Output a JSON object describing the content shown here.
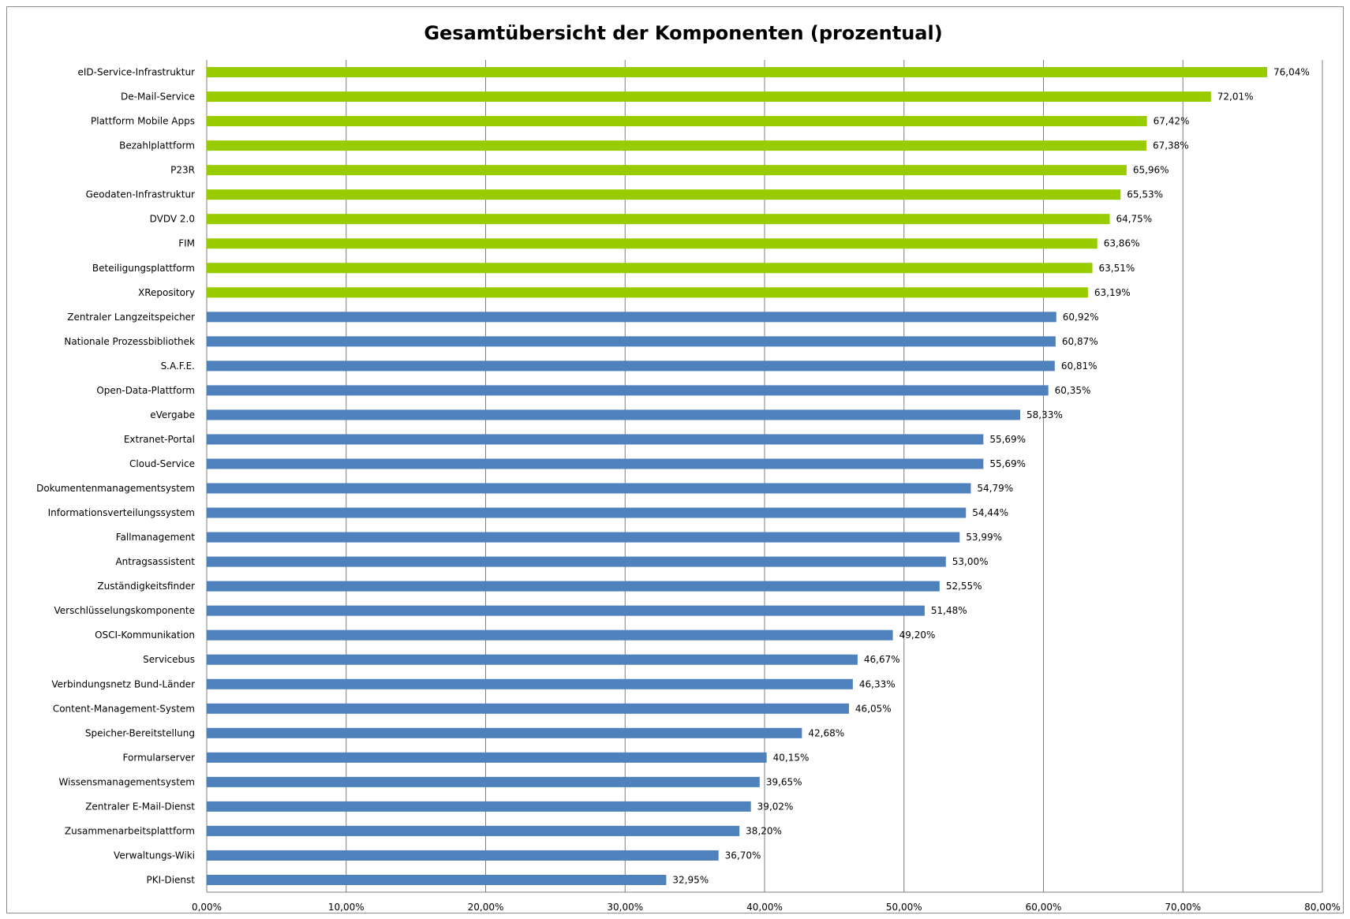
{
  "chart_data": {
    "type": "bar",
    "orientation": "horizontal",
    "title": "Gesamtübersicht der Komponenten (prozentual)",
    "xlabel": "",
    "ylabel": "",
    "xlim": [
      0,
      80
    ],
    "x_ticks": [
      "0,00%",
      "10,00%",
      "20,00%",
      "30,00%",
      "40,00%",
      "50,00%",
      "60,00%",
      "70,00%",
      "80,00%"
    ],
    "grid": "vertical",
    "legend": "none",
    "colors": {
      "highlight": "#99cc00",
      "default": "#4f81bd",
      "grid": "#7f7f7f"
    },
    "categories": [
      "eID-Service-Infrastruktur",
      "De-Mail-Service",
      "Plattform Mobile Apps",
      "Bezahlplattform",
      "P23R",
      "Geodaten-Infrastruktur",
      "DVDV 2.0",
      "FIM",
      "Beteiligungsplattform",
      "XRepository",
      "Zentraler Langzeitspeicher",
      "Nationale Prozessbibliothek",
      "S.A.F.E.",
      "Open-Data-Plattform",
      "eVergabe",
      "Extranet-Portal",
      "Cloud-Service",
      "Dokumentenmanagementsystem",
      "Informationsverteilungssystem",
      "Fallmanagement",
      "Antragsassistent",
      "Zuständigkeitsfinder",
      "Verschlüsselungskomponente",
      "OSCI-Kommunikation",
      "Servicebus",
      "Verbindungsnetz Bund-Länder",
      "Content-Management-System",
      "Speicher-Bereitstellung",
      "Formularserver",
      "Wissensmanagementsystem",
      "Zentraler E-Mail-Dienst",
      "Zusammenarbeitsplattform",
      "Verwaltungs-Wiki",
      "PKI-Dienst"
    ],
    "values": [
      76.04,
      72.01,
      67.42,
      67.38,
      65.96,
      65.53,
      64.75,
      63.86,
      63.51,
      63.19,
      60.92,
      60.87,
      60.81,
      60.35,
      58.33,
      55.69,
      55.69,
      54.79,
      54.44,
      53.99,
      53.0,
      52.55,
      51.48,
      49.2,
      46.67,
      46.33,
      46.05,
      42.68,
      40.15,
      39.65,
      39.02,
      38.2,
      36.7,
      32.95
    ],
    "labels": [
      "76,04%",
      "72,01%",
      "67,42%",
      "67,38%",
      "65,96%",
      "65,53%",
      "64,75%",
      "63,86%",
      "63,51%",
      "63,19%",
      "60,92%",
      "60,87%",
      "60,81%",
      "60,35%",
      "58,33%",
      "55,69%",
      "55,69%",
      "54,79%",
      "54,44%",
      "53,99%",
      "53,00%",
      "52,55%",
      "51,48%",
      "49,20%",
      "46,67%",
      "46,33%",
      "46,05%",
      "42,68%",
      "40,15%",
      "39,65%",
      "39,02%",
      "38,20%",
      "36,70%",
      "32,95%"
    ],
    "highlighted_count": 10
  }
}
